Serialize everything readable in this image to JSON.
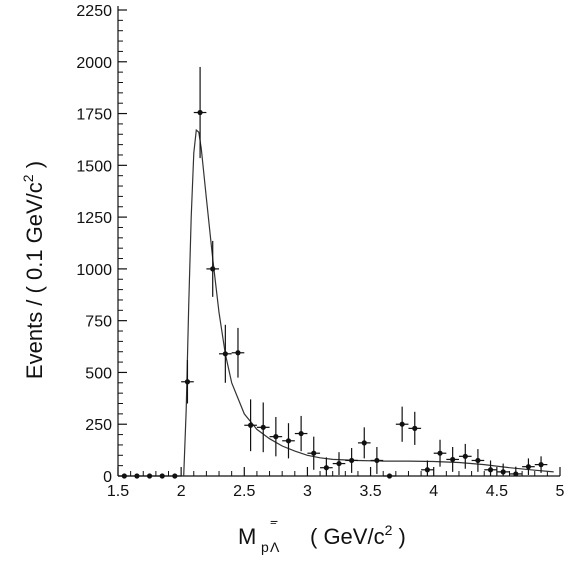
{
  "chart_data": {
    "type": "scatter",
    "xlabel_main": "M",
    "xlabel_sub": "p",
    "xlabel_lambda": "Λ",
    "xlabel_bar": "‾",
    "xlabel_minus": "−",
    "xlabel_units": "( GeV/c",
    "xlabel_units_sup": "2",
    "xlabel_units_close": " )",
    "ylabel_main": "Events / ( 0.1 GeV/c",
    "ylabel_sup": "2",
    "ylabel_close": " )",
    "xlim": [
      1.5,
      5.0
    ],
    "ylim": [
      0,
      2250
    ],
    "xticks": [
      1.5,
      2,
      2.5,
      3,
      3.5,
      4,
      4.5,
      5
    ],
    "xtick_labels": [
      "1.5",
      "2",
      "2.5",
      "3",
      "3.5",
      "4",
      "4.5",
      "5"
    ],
    "yticks": [
      0,
      250,
      500,
      750,
      1000,
      1250,
      1500,
      1750,
      2000,
      2250
    ],
    "ytick_labels": [
      "0",
      "250",
      "500",
      "750",
      "1000",
      "1250",
      "1500",
      "1750",
      "2000",
      "2250"
    ],
    "grid": false,
    "series": [
      {
        "kind": "points_with_errors",
        "x": [
          1.55,
          1.65,
          1.75,
          1.85,
          1.95,
          2.05,
          2.15,
          2.25,
          2.35,
          2.45,
          2.55,
          2.65,
          2.75,
          2.85,
          2.95,
          3.05,
          3.15,
          3.25,
          3.35,
          3.45,
          3.55,
          3.65,
          3.75,
          3.85,
          3.95,
          4.05,
          4.15,
          4.25,
          4.35,
          4.45,
          4.55,
          4.65,
          4.75,
          4.85
        ],
        "y": [
          0,
          0,
          0,
          0,
          0,
          455,
          1755,
          1000,
          590,
          595,
          245,
          235,
          190,
          170,
          205,
          110,
          40,
          60,
          75,
          160,
          75,
          0,
          250,
          230,
          30,
          110,
          80,
          95,
          75,
          30,
          20,
          10,
          45,
          55
        ],
        "yerr": [
          0,
          0,
          0,
          0,
          0,
          105,
          220,
          135,
          140,
          120,
          125,
          120,
          95,
          85,
          85,
          80,
          50,
          55,
          60,
          75,
          65,
          0,
          85,
          80,
          45,
          65,
          60,
          60,
          55,
          45,
          40,
          35,
          40,
          40
        ]
      },
      {
        "kind": "fit_curve",
        "x": [
          2.02,
          2.04,
          2.06,
          2.08,
          2.1,
          2.12,
          2.14,
          2.16,
          2.2,
          2.25,
          2.3,
          2.35,
          2.4,
          2.5,
          2.6,
          2.7,
          2.8,
          2.9,
          3.0,
          3.1,
          3.2,
          3.4,
          3.6,
          3.8,
          4.0,
          4.2,
          4.4,
          4.6,
          4.8,
          4.95
        ],
        "y": [
          0,
          320,
          820,
          1250,
          1560,
          1670,
          1660,
          1580,
          1340,
          1050,
          790,
          590,
          450,
          300,
          225,
          180,
          145,
          120,
          100,
          88,
          80,
          75,
          72,
          72,
          70,
          65,
          55,
          40,
          28,
          20
        ]
      }
    ]
  }
}
